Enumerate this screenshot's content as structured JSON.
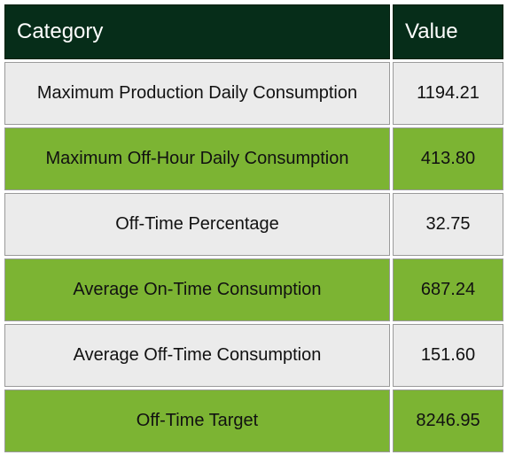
{
  "chart_data": {
    "type": "table",
    "columns": [
      "Category",
      "Value"
    ],
    "rows": [
      {
        "category": "Maximum Production Daily Consumption",
        "value": "1194.21"
      },
      {
        "category": "Maximum Off-Hour Daily Consumption",
        "value": "413.80"
      },
      {
        "category": "Off-Time Percentage",
        "value": "32.75"
      },
      {
        "category": "Average On-Time Consumption",
        "value": "687.24"
      },
      {
        "category": "Average Off-Time Consumption",
        "value": "151.60"
      },
      {
        "category": "Off-Time Target",
        "value": "8246.95"
      }
    ]
  },
  "colors": {
    "header_bg": "#062d19",
    "header_text": "#ffffff",
    "row_light": "#ebebeb",
    "row_green": "#7cb433"
  }
}
